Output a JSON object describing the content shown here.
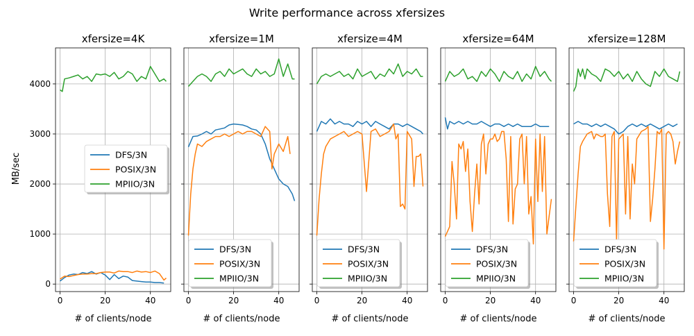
{
  "figure": {
    "title": "Write performance across xfersizes",
    "ylabel": "MB/sec",
    "xlabel": "# of clients/node"
  },
  "colors": {
    "DFS/3N": "#1f77b4",
    "POSIX/3N": "#ff7f0e",
    "MPIIO/3N": "#2ca02c",
    "grid": "#b0b0b0",
    "axes": "#000000"
  },
  "chart_data": [
    {
      "type": "line",
      "title": "xfersize=4K",
      "xlabel": "# of clients/node",
      "ylabel": "MB/sec",
      "xlim": [
        -2,
        49
      ],
      "ylim": [
        -150,
        4720
      ],
      "xticks": [
        0,
        20,
        40
      ],
      "yticks": [
        0,
        1000,
        2000,
        3000,
        4000
      ],
      "grid": true,
      "legend": "center-right",
      "series": [
        {
          "name": "DFS/3N",
          "x": [
            0,
            2,
            4,
            6,
            8,
            10,
            12,
            14,
            16,
            18,
            20,
            22,
            24,
            26,
            28,
            30,
            32,
            34,
            36,
            38,
            40,
            42,
            44,
            46
          ],
          "y": [
            60,
            130,
            180,
            200,
            190,
            230,
            210,
            250,
            200,
            230,
            180,
            90,
            190,
            110,
            160,
            140,
            70,
            60,
            50,
            40,
            40,
            30,
            30,
            20
          ]
        },
        {
          "name": "POSIX/3N",
          "x": [
            0,
            2,
            4,
            6,
            8,
            10,
            12,
            14,
            16,
            18,
            20,
            22,
            24,
            26,
            28,
            30,
            32,
            34,
            36,
            38,
            40,
            42,
            44,
            46,
            47
          ],
          "y": [
            100,
            160,
            150,
            170,
            190,
            200,
            200,
            210,
            210,
            230,
            240,
            240,
            220,
            260,
            250,
            250,
            230,
            260,
            240,
            250,
            230,
            260,
            210,
            80,
            120
          ]
        },
        {
          "name": "MPIIO/3N",
          "x": [
            0,
            1,
            2,
            4,
            6,
            8,
            10,
            12,
            14,
            16,
            18,
            20,
            22,
            24,
            26,
            28,
            30,
            32,
            34,
            36,
            38,
            40,
            42,
            44,
            46,
            47
          ],
          "y": [
            3880,
            3850,
            4100,
            4120,
            4150,
            4180,
            4100,
            4150,
            4050,
            4200,
            4180,
            4200,
            4150,
            4230,
            4100,
            4150,
            4250,
            4200,
            4050,
            4150,
            4100,
            4350,
            4200,
            4050,
            4100,
            4050
          ]
        }
      ]
    },
    {
      "type": "line",
      "title": "xfersize=1M",
      "xlabel": "# of clients/node",
      "ylabel": "",
      "xlim": [
        -2,
        49
      ],
      "ylim": [
        -150,
        4720
      ],
      "xticks": [
        0,
        20,
        40
      ],
      "yticks": [
        0,
        1000,
        2000,
        3000,
        4000
      ],
      "grid": true,
      "legend": "bottom-left",
      "series": [
        {
          "name": "DFS/3N",
          "x": [
            0,
            2,
            4,
            6,
            8,
            10,
            12,
            14,
            16,
            18,
            20,
            22,
            24,
            26,
            28,
            30,
            32,
            34,
            36,
            38,
            40,
            42,
            44,
            46,
            47
          ],
          "y": [
            2740,
            2950,
            2960,
            3000,
            3050,
            3000,
            3080,
            3100,
            3120,
            3180,
            3200,
            3190,
            3180,
            3150,
            3100,
            3080,
            3000,
            2800,
            2500,
            2300,
            2100,
            2000,
            1950,
            1800,
            1660
          ]
        },
        {
          "name": "POSIX/3N",
          "x": [
            0,
            1,
            2,
            3,
            4,
            6,
            8,
            10,
            12,
            14,
            16,
            18,
            20,
            22,
            24,
            26,
            28,
            30,
            32,
            34,
            36,
            37,
            38,
            40,
            42,
            44,
            45
          ],
          "y": [
            970,
            1800,
            2300,
            2600,
            2800,
            2750,
            2850,
            2900,
            2950,
            2950,
            3000,
            2950,
            3000,
            3050,
            3000,
            3050,
            3050,
            3000,
            2950,
            3150,
            3050,
            2300,
            2600,
            2800,
            2650,
            2950,
            2600
          ]
        },
        {
          "name": "MPIIO/3N",
          "x": [
            0,
            2,
            4,
            6,
            8,
            10,
            12,
            14,
            16,
            18,
            20,
            22,
            24,
            26,
            28,
            30,
            32,
            34,
            36,
            38,
            40,
            42,
            44,
            46,
            47
          ],
          "y": [
            3950,
            4050,
            4150,
            4200,
            4150,
            4050,
            4200,
            4250,
            4150,
            4300,
            4200,
            4250,
            4300,
            4200,
            4150,
            4300,
            4200,
            4250,
            4150,
            4200,
            4500,
            4150,
            4400,
            4100,
            4100
          ]
        }
      ]
    },
    {
      "type": "line",
      "title": "xfersize=4M",
      "xlabel": "# of clients/node",
      "ylabel": "",
      "xlim": [
        -2,
        49
      ],
      "ylim": [
        -150,
        4720
      ],
      "xticks": [
        0,
        20,
        40
      ],
      "yticks": [
        0,
        1000,
        2000,
        3000,
        4000
      ],
      "grid": true,
      "legend": "bottom-left",
      "series": [
        {
          "name": "DFS/3N",
          "x": [
            0,
            2,
            4,
            6,
            8,
            10,
            12,
            14,
            16,
            18,
            20,
            22,
            24,
            26,
            28,
            30,
            32,
            34,
            36,
            38,
            40,
            42,
            44,
            46,
            47
          ],
          "y": [
            3050,
            3250,
            3200,
            3300,
            3200,
            3250,
            3200,
            3200,
            3150,
            3250,
            3200,
            3250,
            3150,
            3250,
            3200,
            3150,
            3100,
            3200,
            3200,
            3150,
            3200,
            3150,
            3100,
            3050,
            3000
          ]
        },
        {
          "name": "POSIX/3N",
          "x": [
            0,
            1,
            2,
            3,
            4,
            6,
            8,
            10,
            12,
            14,
            16,
            18,
            20,
            22,
            24,
            26,
            28,
            30,
            32,
            34,
            35,
            36,
            37,
            38,
            39,
            40,
            42,
            43,
            44,
            45,
            46,
            47
          ],
          "y": [
            970,
            1700,
            2200,
            2600,
            2750,
            2900,
            2950,
            3000,
            3050,
            2950,
            3000,
            3050,
            3000,
            1850,
            3050,
            3100,
            2950,
            3000,
            3050,
            3200,
            2900,
            3000,
            1550,
            1600,
            1500,
            3050,
            2900,
            1950,
            2550,
            2550,
            2600,
            1950
          ]
        },
        {
          "name": "MPIIO/3N",
          "x": [
            0,
            2,
            4,
            6,
            8,
            10,
            12,
            14,
            16,
            18,
            20,
            22,
            24,
            26,
            28,
            30,
            32,
            34,
            36,
            38,
            40,
            42,
            44,
            46,
            47
          ],
          "y": [
            4000,
            4150,
            4200,
            4150,
            4200,
            4250,
            4150,
            4200,
            4100,
            4300,
            4150,
            4200,
            4250,
            4100,
            4200,
            4150,
            4300,
            4200,
            4400,
            4150,
            4250,
            4200,
            4300,
            4150,
            4150
          ]
        }
      ]
    },
    {
      "type": "line",
      "title": "xfersize=64M",
      "xlabel": "# of clients/node",
      "ylabel": "",
      "xlim": [
        -2,
        49
      ],
      "ylim": [
        -150,
        4720
      ],
      "xticks": [
        0,
        20,
        40
      ],
      "yticks": [
        0,
        1000,
        2000,
        3000,
        4000
      ],
      "grid": true,
      "legend": "bottom-left",
      "series": [
        {
          "name": "DFS/3N",
          "x": [
            0,
            1,
            2,
            4,
            6,
            8,
            10,
            12,
            14,
            16,
            18,
            20,
            22,
            24,
            26,
            28,
            30,
            32,
            34,
            36,
            38,
            40,
            42,
            44,
            46
          ],
          "y": [
            3330,
            3100,
            3250,
            3200,
            3250,
            3200,
            3250,
            3200,
            3200,
            3250,
            3200,
            3150,
            3200,
            3200,
            3150,
            3200,
            3150,
            3200,
            3150,
            3150,
            3150,
            3200,
            3150,
            3150,
            3150
          ]
        },
        {
          "name": "POSIX/3N",
          "x": [
            0,
            2,
            3,
            4,
            5,
            6,
            7,
            8,
            9,
            10,
            11,
            12,
            13,
            14,
            15,
            16,
            17,
            18,
            19,
            20,
            21,
            22,
            23,
            24,
            25,
            26,
            27,
            28,
            29,
            30,
            31,
            32,
            33,
            34,
            35,
            36,
            37,
            38,
            39,
            40,
            41,
            42,
            43,
            44,
            45,
            46,
            47
          ],
          "y": [
            950,
            1150,
            2450,
            2000,
            1300,
            2800,
            2700,
            2850,
            2250,
            2700,
            1650,
            1050,
            1800,
            2400,
            1600,
            2800,
            3000,
            2200,
            2800,
            2900,
            2900,
            3000,
            2850,
            2900,
            3050,
            3050,
            2500,
            1250,
            2950,
            1200,
            1900,
            2000,
            2900,
            3000,
            2000,
            2950,
            1400,
            1750,
            800,
            2900,
            1650,
            3000,
            1850,
            2950,
            1000,
            1350,
            1700
          ]
        },
        {
          "name": "MPIIO/3N",
          "x": [
            0,
            2,
            4,
            6,
            8,
            10,
            12,
            14,
            16,
            18,
            20,
            22,
            24,
            26,
            28,
            30,
            32,
            34,
            36,
            38,
            40,
            42,
            44,
            46,
            47
          ],
          "y": [
            4050,
            4250,
            4150,
            4200,
            4300,
            4100,
            4150,
            4050,
            4250,
            4150,
            4300,
            4200,
            4050,
            4250,
            4150,
            4100,
            4250,
            4050,
            4200,
            4100,
            4350,
            4150,
            4250,
            4100,
            4050
          ]
        }
      ]
    },
    {
      "type": "line",
      "title": "xfersize=128M",
      "xlabel": "# of clients/node",
      "ylabel": "",
      "xlim": [
        -2,
        49
      ],
      "ylim": [
        -150,
        4720
      ],
      "xticks": [
        0,
        20,
        40
      ],
      "yticks": [
        0,
        1000,
        2000,
        3000,
        4000
      ],
      "grid": true,
      "legend": "bottom-left",
      "series": [
        {
          "name": "DFS/3N",
          "x": [
            0,
            2,
            4,
            6,
            8,
            10,
            12,
            14,
            16,
            18,
            20,
            22,
            24,
            26,
            28,
            30,
            32,
            34,
            36,
            38,
            40,
            42,
            44,
            46
          ],
          "y": [
            3200,
            3250,
            3200,
            3200,
            3150,
            3200,
            3150,
            3200,
            3150,
            3100,
            3000,
            3050,
            3150,
            3200,
            3150,
            3200,
            3150,
            3200,
            3150,
            3100,
            3150,
            3200,
            3150,
            3200
          ]
        },
        {
          "name": "POSIX/3N",
          "x": [
            0,
            1,
            2,
            3,
            4,
            6,
            8,
            9,
            10,
            12,
            13,
            14,
            15,
            16,
            17,
            18,
            19,
            20,
            21,
            22,
            23,
            24,
            25,
            26,
            27,
            28,
            30,
            32,
            33,
            34,
            35,
            36,
            37,
            38,
            39,
            40,
            41,
            42,
            43,
            44,
            45,
            46,
            47
          ],
          "y": [
            850,
            1550,
            2200,
            2750,
            2850,
            3000,
            3050,
            2900,
            3000,
            2950,
            2950,
            3000,
            1800,
            1150,
            2950,
            3050,
            850,
            2900,
            2950,
            3000,
            1400,
            2950,
            1300,
            2400,
            2000,
            2900,
            3050,
            3100,
            3150,
            1250,
            1700,
            2300,
            3050,
            3000,
            3100,
            700,
            3000,
            3050,
            3000,
            2850,
            2400,
            2650,
            2850
          ]
        },
        {
          "name": "MPIIO/3N",
          "x": [
            0,
            1,
            2,
            3,
            4,
            5,
            6,
            8,
            10,
            12,
            14,
            16,
            18,
            20,
            22,
            24,
            26,
            28,
            30,
            32,
            34,
            36,
            38,
            40,
            42,
            44,
            46,
            47
          ],
          "y": [
            3850,
            3950,
            4300,
            4150,
            4300,
            4100,
            4300,
            4200,
            4150,
            4050,
            4300,
            4250,
            4150,
            4250,
            4100,
            4200,
            4050,
            4250,
            4100,
            4000,
            3950,
            4250,
            4150,
            4300,
            4150,
            4100,
            4050,
            4250
          ]
        }
      ]
    }
  ]
}
